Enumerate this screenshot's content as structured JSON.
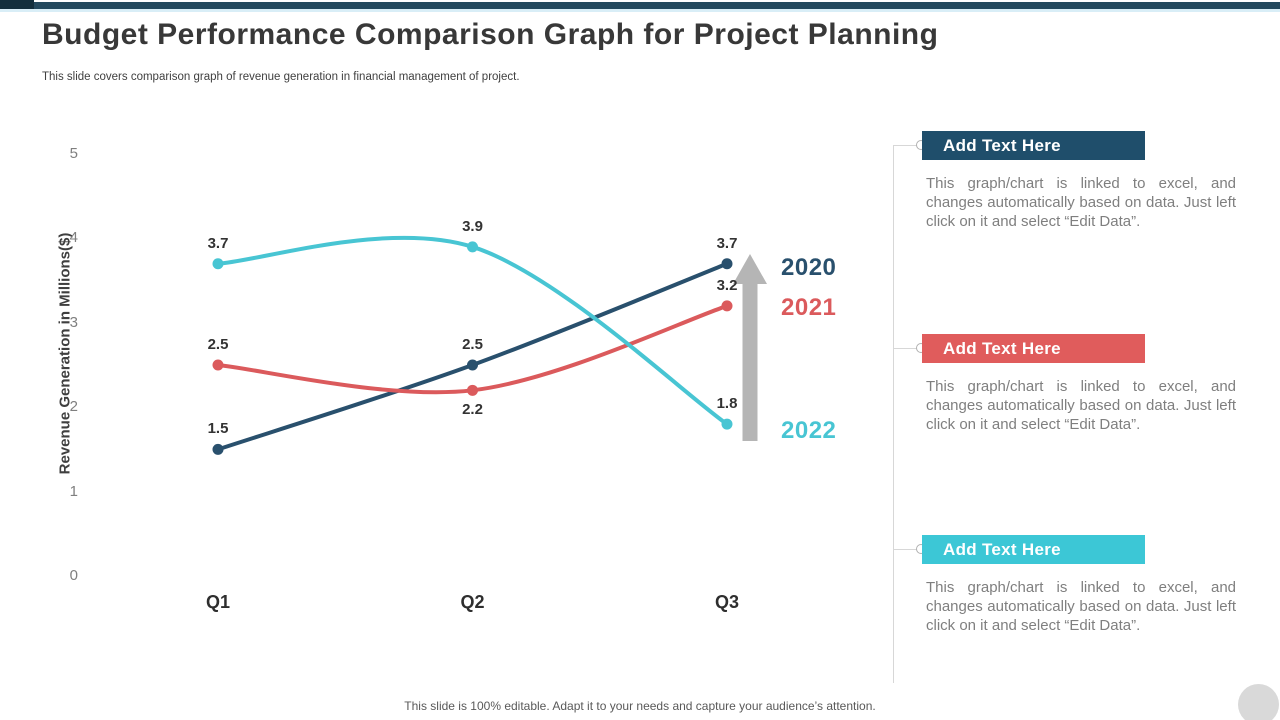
{
  "slide": {
    "title": "Budget Performance Comparison Graph for Project Planning",
    "subtitle": "This slide covers comparison graph of revenue generation in financial management of project.",
    "footer": "This slide is 100% editable. Adapt it to your needs and capture your audience’s attention."
  },
  "colors": {
    "top_bar": "#24495e",
    "top_bar_accent": "#142f3d",
    "top_underline": "#d9eef7",
    "arrow": "#b5b5b5",
    "connector": "#d7d7d7",
    "corner_circle": "#d9d9d9"
  },
  "chart_data": {
    "type": "line",
    "title": "",
    "categories": [
      "Q1",
      "Q2",
      "Q3"
    ],
    "series": [
      {
        "name": "2020",
        "color": "#29506d",
        "values": [
          1.5,
          2.5,
          3.7
        ],
        "label_side": [
          "above",
          "above",
          "above"
        ]
      },
      {
        "name": "2021",
        "color": "#db5a5c",
        "values": [
          2.5,
          2.2,
          3.2
        ],
        "label_side": [
          "above",
          "below",
          "above"
        ]
      },
      {
        "name": "2022",
        "color": "#48c5d3",
        "values": [
          3.7,
          3.9,
          1.8
        ],
        "label_side": [
          "above",
          "above",
          "above"
        ]
      }
    ],
    "xlabel": "",
    "ylabel": "Revenue Generation in Millions($)",
    "yticks": [
      0,
      1,
      2,
      3,
      4,
      5
    ],
    "ylim": [
      0,
      5
    ],
    "grid": false,
    "legend_position": "right",
    "annotations": [
      "gray up arrow beside Q3 values"
    ]
  },
  "panel": {
    "sections": [
      {
        "header": "Add Text Here",
        "color": "#1f4e6b",
        "body": "This graph/chart is linked to excel, and changes automatically based on data. Just left click on it and select “Edit Data”."
      },
      {
        "header": "Add Text Here",
        "color": "#e05c5c",
        "body": "This graph/chart is linked to excel, and changes automatically based on data. Just left click on it and select “Edit Data”."
      },
      {
        "header": "Add Text Here",
        "color": "#3cc7d6",
        "body": "This graph/chart is linked to excel, and changes automatically based on data. Just left click on it and select “Edit Data”."
      }
    ]
  }
}
